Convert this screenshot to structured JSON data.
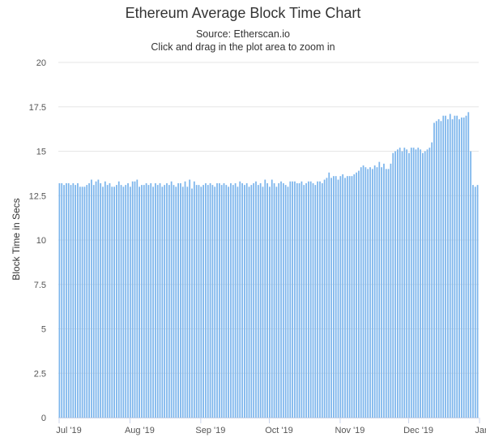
{
  "title": "Ethereum Average Block Time Chart",
  "subtitle_source": "Source: Etherscan.io",
  "subtitle_hint": "Click and drag in the plot area to zoom in",
  "colors": {
    "bar": "#7cb5ec",
    "grid": "#e6e6e6",
    "axis": "#ccd6eb"
  },
  "chart_data": {
    "type": "bar",
    "title": "Ethereum Average Block Time Chart",
    "xlabel": "",
    "ylabel": "Block Time in Secs",
    "ylim": [
      0,
      20
    ],
    "yticks": [
      0,
      2.5,
      5,
      7.5,
      10,
      12.5,
      15,
      17.5,
      20
    ],
    "ytick_labels": [
      "0",
      "2.5",
      "5",
      "7.5",
      "10",
      "12.5",
      "15",
      "17.5",
      "20"
    ],
    "x_ticks": [
      {
        "label": "Jul '19",
        "date": "2019-07-01"
      },
      {
        "label": "Aug '19",
        "date": "2019-08-01"
      },
      {
        "label": "Sep '19",
        "date": "2019-09-01"
      },
      {
        "label": "Oct '19",
        "date": "2019-10-01"
      },
      {
        "label": "Nov '19",
        "date": "2019-11-01"
      },
      {
        "label": "Dec '19",
        "date": "2019-12-01"
      },
      {
        "label": "Jan '20",
        "date": "2020-01-01"
      }
    ],
    "grid": true,
    "legend": "none",
    "series": [
      {
        "start_date": "2019-07-01",
        "interval": "daily",
        "values": [
          13.2,
          13.2,
          13.1,
          13.2,
          13.2,
          13.1,
          13.2,
          13.1,
          13.2,
          13.0,
          13.0,
          13.0,
          13.1,
          13.2,
          13.4,
          13.1,
          13.3,
          13.4,
          13.2,
          13.0,
          13.3,
          13.1,
          13.2,
          13.0,
          13.0,
          13.1,
          13.3,
          13.1,
          13.0,
          13.1,
          13.2,
          13.0,
          13.3,
          13.3,
          13.4,
          13.0,
          13.1,
          13.1,
          13.2,
          13.1,
          13.2,
          13.0,
          13.2,
          13.1,
          13.2,
          13.0,
          13.1,
          13.2,
          13.1,
          13.3,
          13.1,
          13.0,
          13.2,
          13.2,
          13.0,
          13.3,
          13.0,
          13.4,
          12.9,
          13.3,
          13.1,
          13.1,
          13.0,
          13.1,
          13.2,
          13.1,
          13.2,
          13.1,
          13.0,
          13.2,
          13.2,
          13.1,
          13.2,
          13.1,
          13.0,
          13.2,
          13.1,
          13.2,
          13.0,
          13.3,
          13.2,
          13.1,
          13.2,
          13.0,
          13.1,
          13.2,
          13.3,
          13.1,
          13.2,
          13.0,
          13.4,
          13.2,
          13.0,
          13.4,
          13.2,
          13.0,
          13.2,
          13.3,
          13.2,
          13.1,
          13.0,
          13.3,
          13.3,
          13.3,
          13.2,
          13.2,
          13.3,
          13.1,
          13.2,
          13.3,
          13.3,
          13.2,
          13.1,
          13.3,
          13.3,
          13.2,
          13.4,
          13.5,
          13.8,
          13.5,
          13.6,
          13.6,
          13.4,
          13.6,
          13.7,
          13.5,
          13.6,
          13.6,
          13.6,
          13.7,
          13.8,
          13.9,
          14.1,
          14.2,
          14.1,
          14.0,
          14.1,
          14.0,
          14.2,
          14.1,
          14.4,
          14.1,
          14.3,
          14.0,
          14.0,
          14.3,
          14.9,
          15.0,
          15.1,
          15.2,
          15.0,
          15.2,
          15.1,
          14.9,
          15.2,
          15.2,
          15.1,
          15.2,
          15.1,
          14.9,
          15.0,
          15.1,
          15.2,
          15.5,
          16.6,
          16.7,
          16.8,
          16.7,
          17.0,
          17.0,
          16.8,
          17.1,
          16.8,
          17.0,
          17.0,
          16.8,
          16.9,
          16.9,
          17.0,
          17.2,
          15.0,
          13.1,
          13.0,
          13.1
        ]
      }
    ]
  }
}
